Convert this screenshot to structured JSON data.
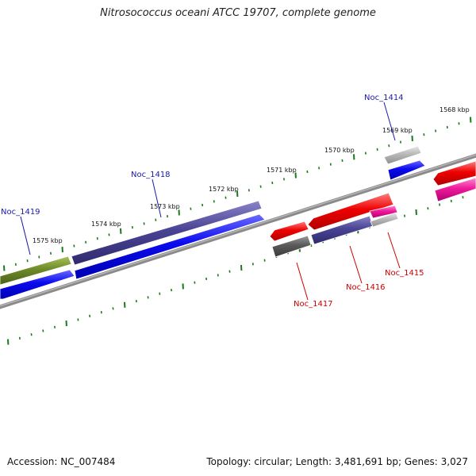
{
  "title": "Nitrosococcus oceani ATCC 19707, complete genome",
  "accession": "Accession: NC_007484",
  "summary": "Topology: circular; Length: 3,481,691 bp; Genes: 3,027",
  "colors": {
    "forward_label": "#1a1aaa",
    "reverse_label": "#cc0000",
    "backbone": "#8a8a8a",
    "tick": "#1a7a1a"
  },
  "kbp_labels": [
    "1575 kbp",
    "1574 kbp",
    "1573 kbp",
    "1572 kbp",
    "1571 kbp",
    "1570 kbp",
    "1569 kbp",
    "1568 kbp"
  ],
  "gene_labels": [
    {
      "text": "Noc_1419",
      "strand": "forward"
    },
    {
      "text": "Noc_1418",
      "strand": "forward"
    },
    {
      "text": "Noc_1414",
      "strand": "forward"
    },
    {
      "text": "Noc_1417",
      "strand": "reverse"
    },
    {
      "text": "Noc_1416",
      "strand": "reverse"
    },
    {
      "text": "Noc_1415",
      "strand": "reverse"
    }
  ]
}
